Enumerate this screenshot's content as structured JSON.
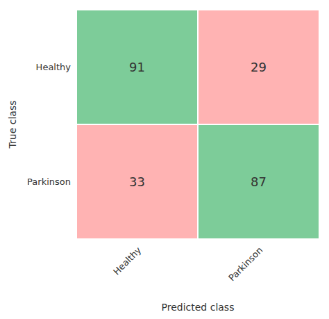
{
  "chart_data": {
    "type": "confusion_matrix",
    "x_label": "Predicted class",
    "y_label": "True class",
    "categories": [
      "Healthy",
      "Parkinson"
    ],
    "values": [
      [
        91,
        29
      ],
      [
        33,
        87
      ]
    ],
    "colors": [
      [
        "#7dcc99",
        "#ffb3b3"
      ],
      [
        "#ffb3b3",
        "#7dcc99"
      ]
    ],
    "data_labels": true
  }
}
